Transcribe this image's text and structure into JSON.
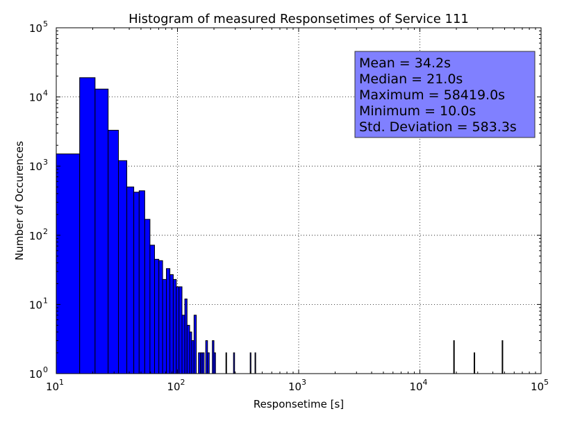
{
  "chart_data": {
    "type": "bar",
    "title": "Histogram of measured Responsetimes of Service 111",
    "xlabel": "Responsetime [s]",
    "ylabel": "Number of Occurences",
    "xscale": "log",
    "yscale": "log",
    "xlim": [
      10,
      100000
    ],
    "ylim": [
      1,
      100000
    ],
    "grid": true,
    "bar_color": "#0000ff",
    "x_ticks": [
      {
        "base": "10",
        "exp": "1"
      },
      {
        "base": "10",
        "exp": "2"
      },
      {
        "base": "10",
        "exp": "3"
      },
      {
        "base": "10",
        "exp": "4"
      },
      {
        "base": "10",
        "exp": "5"
      }
    ],
    "y_ticks": [
      {
        "base": "10",
        "exp": "0"
      },
      {
        "base": "10",
        "exp": "1"
      },
      {
        "base": "10",
        "exp": "2"
      },
      {
        "base": "10",
        "exp": "3"
      },
      {
        "base": "10",
        "exp": "4"
      },
      {
        "base": "10",
        "exp": "5"
      }
    ],
    "stats_box": {
      "lines": [
        "Mean = 34.2s",
        "Median = 21.0s",
        "Maximum = 58419.0s",
        "Minimum = 10.0s",
        "Std. Deviation = 583.3s"
      ],
      "facecolor": "#8080ff",
      "placement": "top-right"
    },
    "bins": [
      {
        "x0": 10,
        "x1": 15.6,
        "count": 1500
      },
      {
        "x0": 15.6,
        "x1": 20.9,
        "count": 19000
      },
      {
        "x0": 20.9,
        "x1": 26.8,
        "count": 13000
      },
      {
        "x0": 26.8,
        "x1": 32.6,
        "count": 3300
      },
      {
        "x0": 32.6,
        "x1": 38.2,
        "count": 1200
      },
      {
        "x0": 38.2,
        "x1": 43.6,
        "count": 500
      },
      {
        "x0": 43.6,
        "x1": 48.3,
        "count": 420
      },
      {
        "x0": 48.3,
        "x1": 53.7,
        "count": 440
      },
      {
        "x0": 53.7,
        "x1": 59.3,
        "count": 170
      },
      {
        "x0": 59.3,
        "x1": 64.7,
        "count": 72
      },
      {
        "x0": 64.7,
        "x1": 70.2,
        "count": 45
      },
      {
        "x0": 70.2,
        "x1": 75.4,
        "count": 43
      },
      {
        "x0": 75.4,
        "x1": 81.0,
        "count": 23
      },
      {
        "x0": 81.0,
        "x1": 86.6,
        "count": 33
      },
      {
        "x0": 86.6,
        "x1": 92.3,
        "count": 27
      },
      {
        "x0": 92.3,
        "x1": 97.8,
        "count": 23
      },
      {
        "x0": 97.8,
        "x1": 103,
        "count": 18
      },
      {
        "x0": 103,
        "x1": 109,
        "count": 18
      },
      {
        "x0": 109,
        "x1": 115,
        "count": 7
      },
      {
        "x0": 115,
        "x1": 120,
        "count": 12
      },
      {
        "x0": 120,
        "x1": 126,
        "count": 5
      },
      {
        "x0": 126,
        "x1": 131,
        "count": 4
      },
      {
        "x0": 131,
        "x1": 137,
        "count": 3
      },
      {
        "x0": 137,
        "x1": 143,
        "count": 7
      },
      {
        "x0": 149,
        "x1": 155,
        "count": 2
      },
      {
        "x0": 155,
        "x1": 160,
        "count": 2
      },
      {
        "x0": 160,
        "x1": 166,
        "count": 2
      },
      {
        "x0": 171,
        "x1": 177,
        "count": 3
      },
      {
        "x0": 177,
        "x1": 183,
        "count": 2
      },
      {
        "x0": 194,
        "x1": 200,
        "count": 3
      },
      {
        "x0": 200,
        "x1": 206,
        "count": 2
      },
      {
        "x0": 251,
        "x1": 254,
        "count": 2
      },
      {
        "x0": 290,
        "x1": 296,
        "count": 2
      },
      {
        "x0": 398,
        "x1": 404,
        "count": 2
      },
      {
        "x0": 436,
        "x1": 442,
        "count": 2
      },
      {
        "x0": 19000,
        "x1": 19080,
        "count": 3
      },
      {
        "x0": 28000,
        "x1": 28100,
        "count": 2
      },
      {
        "x0": 47700,
        "x1": 47900,
        "count": 3
      }
    ]
  }
}
